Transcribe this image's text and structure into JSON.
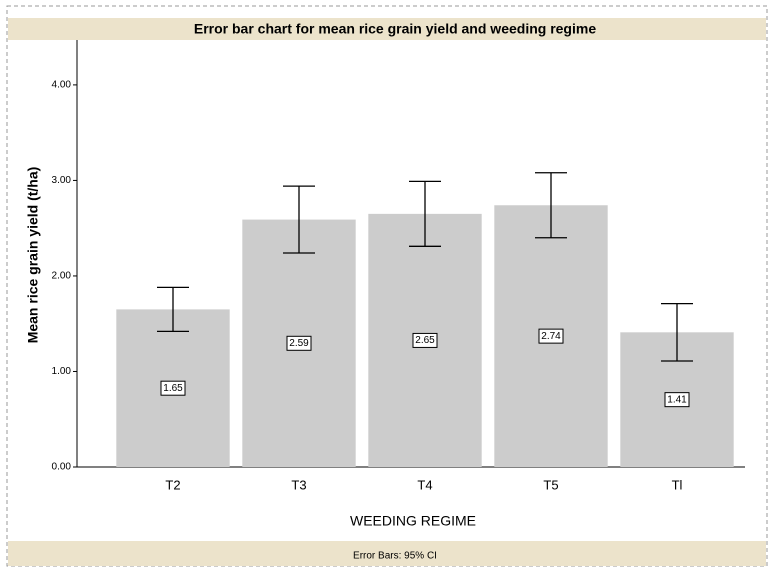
{
  "chart_data": {
    "type": "bar",
    "title": "Error bar chart for mean rice grain yield and weeding regime",
    "x_label": "WEEDING REGIME",
    "y_label": "Mean rice grain yield (t/ha)",
    "footnote": "Error Bars: 95% CI",
    "categories": [
      "T2",
      "T3",
      "T4",
      "T5",
      "Tl"
    ],
    "values": [
      1.65,
      2.59,
      2.65,
      2.74,
      1.41
    ],
    "errors": [
      0.23,
      0.35,
      0.34,
      0.34,
      0.3
    ],
    "color": "#cccccc",
    "ylim": [
      0,
      4.47
    ],
    "yticks": [
      {
        "value": 0,
        "label": "0.00"
      },
      {
        "value": 1,
        "label": "1.00"
      },
      {
        "value": 2,
        "label": "2.00"
      },
      {
        "value": 3,
        "label": "3.00"
      },
      {
        "value": 4,
        "label": "4.00"
      }
    ],
    "grid": false
  }
}
